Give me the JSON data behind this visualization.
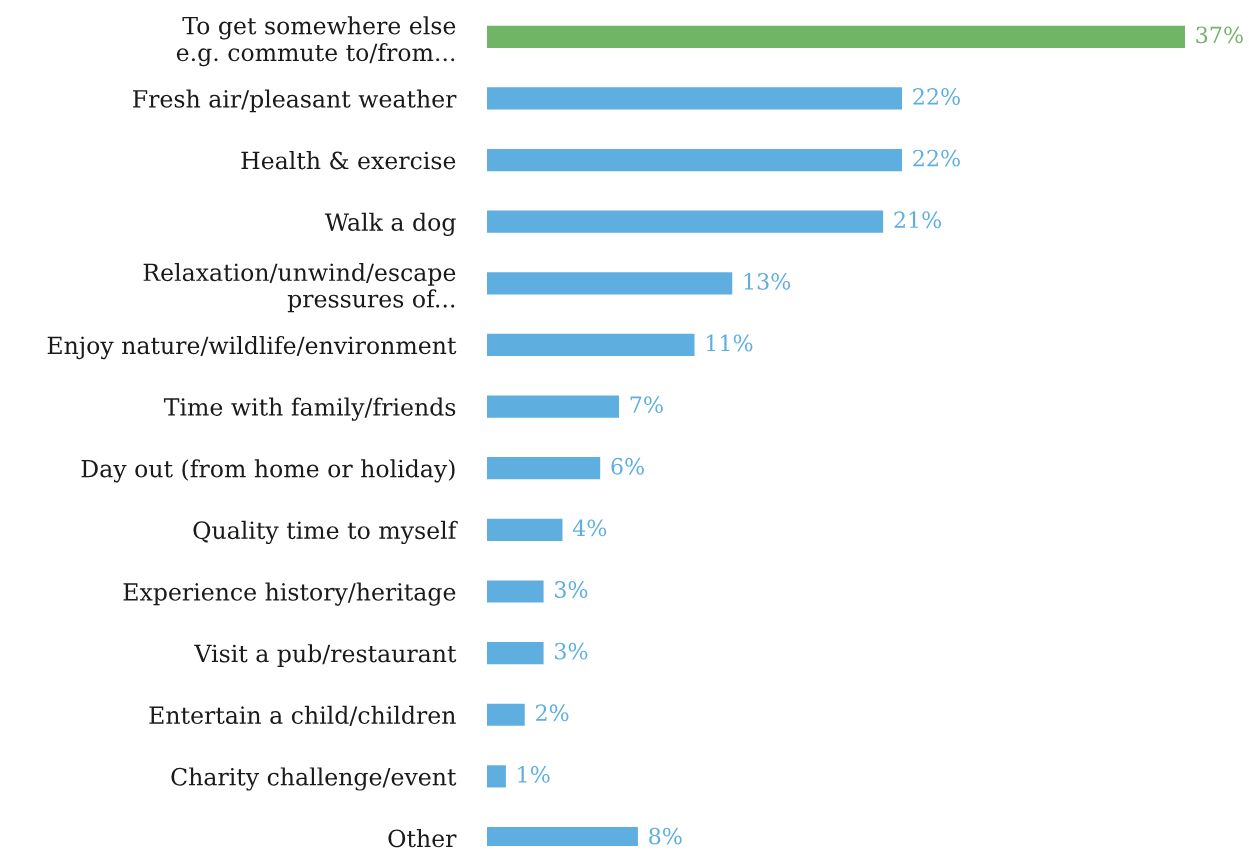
{
  "chart_data": {
    "type": "bar",
    "orientation": "horizontal",
    "categories": [
      "To get somewhere else\ne.g. commute to/from...",
      "Fresh air/pleasant weather",
      "Health & exercise",
      "Walk a dog",
      "Relaxation/unwind/escape\npressures of...",
      "Enjoy nature/wildlife/environment",
      "Time with family/friends",
      "Day out (from home or holiday)",
      "Quality time to myself",
      "Experience history/heritage",
      "Visit a pub/restaurant",
      "Entertain a child/children",
      "Charity challenge/event",
      "Other"
    ],
    "values": [
      37,
      22,
      22,
      21,
      13,
      11,
      7,
      6,
      4,
      3,
      3,
      2,
      1,
      8
    ],
    "value_labels": [
      "37%",
      "22%",
      "22%",
      "21%",
      "13%",
      "11%",
      "7%",
      "6%",
      "4%",
      "3%",
      "3%",
      "2%",
      "1%",
      "8%"
    ],
    "colors": [
      "#70b466",
      "#5eaedf",
      "#5eaedf",
      "#5eaedf",
      "#5eaedf",
      "#5eaedf",
      "#5eaedf",
      "#5eaedf",
      "#5eaedf",
      "#5eaedf",
      "#5eaedf",
      "#5eaedf",
      "#5eaedf",
      "#5eaedf"
    ],
    "tick_labels": "y",
    "grid": false,
    "legend": false
  }
}
